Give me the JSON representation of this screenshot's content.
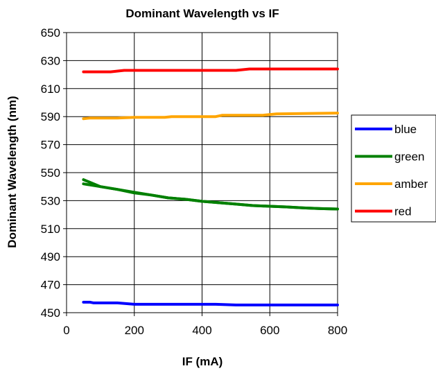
{
  "chart_data": {
    "type": "line",
    "title": "Dominant Wavelength vs IF",
    "xlabel": "IF (mA)",
    "ylabel": "Dominant Wavelength (nm)",
    "xlim": [
      0,
      800
    ],
    "ylim": [
      450,
      650
    ],
    "x_ticks": [
      0,
      200,
      400,
      600,
      800
    ],
    "y_ticks": [
      450,
      470,
      490,
      510,
      530,
      550,
      570,
      590,
      610,
      630,
      650
    ],
    "x_tick_labels": [
      "0",
      "200",
      "400",
      "600",
      "800"
    ],
    "y_tick_labels": [
      "450",
      "470",
      "490",
      "510",
      "530",
      "550",
      "570",
      "590",
      "610",
      "630",
      "650"
    ],
    "grid": true,
    "legend_position": "right",
    "series": [
      {
        "name": "blue",
        "color": "#0000ff",
        "points": [
          [
            50,
            457.5
          ],
          [
            70,
            457.5
          ],
          [
            80,
            457
          ],
          [
            150,
            457
          ],
          [
            200,
            456
          ],
          [
            300,
            456
          ],
          [
            440,
            456
          ],
          [
            500,
            455.5
          ],
          [
            600,
            455.5
          ],
          [
            700,
            455.5
          ],
          [
            800,
            455.5
          ]
        ]
      },
      {
        "name": "green",
        "color": "#008000",
        "points": [
          [
            50,
            545
          ],
          [
            100,
            540
          ],
          [
            150,
            538
          ],
          [
            200,
            535.5
          ],
          [
            250,
            534
          ],
          [
            300,
            532
          ],
          [
            350,
            531
          ],
          [
            400,
            529.5
          ],
          [
            450,
            528.5
          ],
          [
            500,
            527.5
          ],
          [
            550,
            526.5
          ],
          [
            600,
            526
          ],
          [
            650,
            525.5
          ],
          [
            700,
            524.8
          ],
          [
            750,
            524.3
          ],
          [
            800,
            524
          ]
        ],
        "points_secondary": [
          [
            50,
            542
          ],
          [
            100,
            540
          ],
          [
            150,
            538
          ],
          [
            200,
            536
          ],
          [
            250,
            534
          ],
          [
            300,
            532
          ],
          [
            350,
            531
          ],
          [
            400,
            529.5
          ],
          [
            450,
            528.5
          ],
          [
            500,
            527.5
          ],
          [
            550,
            526.5
          ],
          [
            600,
            526
          ],
          [
            650,
            525.5
          ],
          [
            700,
            524.8
          ],
          [
            750,
            524.3
          ],
          [
            800,
            524
          ]
        ]
      },
      {
        "name": "amber",
        "color": "#ffa500",
        "points": [
          [
            50,
            588.5
          ],
          [
            70,
            589
          ],
          [
            150,
            589
          ],
          [
            200,
            589.5
          ],
          [
            290,
            589.5
          ],
          [
            310,
            590
          ],
          [
            440,
            590
          ],
          [
            460,
            591
          ],
          [
            580,
            591
          ],
          [
            620,
            592
          ],
          [
            800,
            592.5
          ]
        ]
      },
      {
        "name": "red",
        "color": "#ff0000",
        "points": [
          [
            50,
            622
          ],
          [
            130,
            622
          ],
          [
            170,
            623
          ],
          [
            300,
            623
          ],
          [
            500,
            623
          ],
          [
            540,
            624
          ],
          [
            800,
            624
          ]
        ]
      }
    ]
  }
}
